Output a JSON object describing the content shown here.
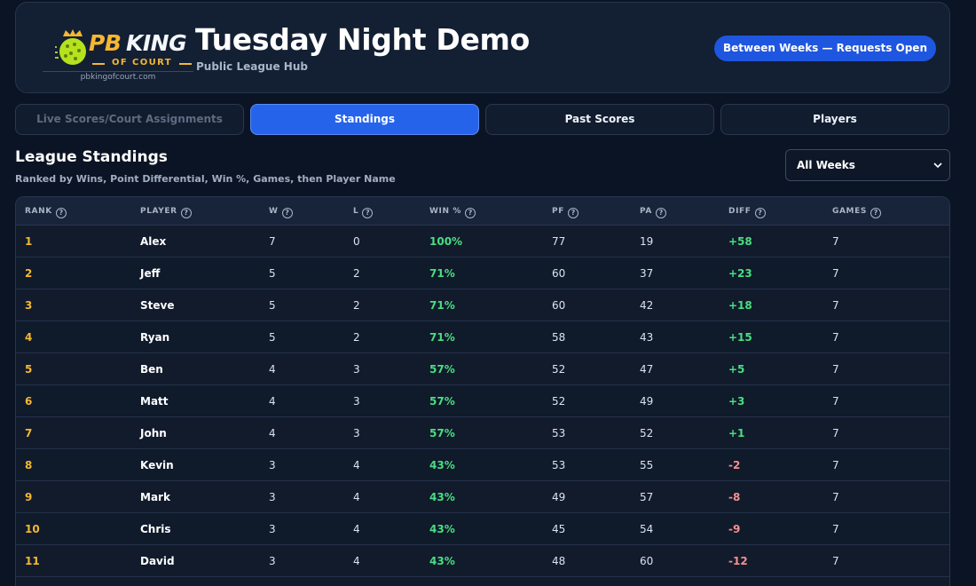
{
  "brand": {
    "logo_pb": "PB",
    "logo_king": "KING",
    "logo_of_court": "OF COURT",
    "logo_url": "pbkingofcourt.com"
  },
  "header": {
    "title": "Tuesday Night Demo",
    "subtitle": "Public League Hub",
    "status": "Between Weeks — Requests Open"
  },
  "tabs": [
    {
      "label": "Live Scores/Court Assignments",
      "state": "disabled"
    },
    {
      "label": "Standings",
      "state": "active"
    },
    {
      "label": "Past Scores",
      "state": "normal"
    },
    {
      "label": "Players",
      "state": "normal"
    }
  ],
  "section": {
    "title": "League Standings",
    "subtitle": "Ranked by Wins, Point Differential, Win %, Games, then Player Name",
    "filter_value": "All Weeks"
  },
  "table": {
    "columns": [
      "RANK",
      "PLAYER",
      "W",
      "L",
      "WIN %",
      "PF",
      "PA",
      "DIFF",
      "GAMES"
    ],
    "rows": [
      {
        "rank": "1",
        "player": "Alex",
        "w": "7",
        "l": "0",
        "win": "100%",
        "pf": "77",
        "pa": "19",
        "diff": "+58",
        "games": "7"
      },
      {
        "rank": "2",
        "player": "Jeff",
        "w": "5",
        "l": "2",
        "win": "71%",
        "pf": "60",
        "pa": "37",
        "diff": "+23",
        "games": "7"
      },
      {
        "rank": "3",
        "player": "Steve",
        "w": "5",
        "l": "2",
        "win": "71%",
        "pf": "60",
        "pa": "42",
        "diff": "+18",
        "games": "7"
      },
      {
        "rank": "4",
        "player": "Ryan",
        "w": "5",
        "l": "2",
        "win": "71%",
        "pf": "58",
        "pa": "43",
        "diff": "+15",
        "games": "7"
      },
      {
        "rank": "5",
        "player": "Ben",
        "w": "4",
        "l": "3",
        "win": "57%",
        "pf": "52",
        "pa": "47",
        "diff": "+5",
        "games": "7"
      },
      {
        "rank": "6",
        "player": "Matt",
        "w": "4",
        "l": "3",
        "win": "57%",
        "pf": "52",
        "pa": "49",
        "diff": "+3",
        "games": "7"
      },
      {
        "rank": "7",
        "player": "John",
        "w": "4",
        "l": "3",
        "win": "57%",
        "pf": "53",
        "pa": "52",
        "diff": "+1",
        "games": "7"
      },
      {
        "rank": "8",
        "player": "Kevin",
        "w": "3",
        "l": "4",
        "win": "43%",
        "pf": "53",
        "pa": "55",
        "diff": "-2",
        "games": "7"
      },
      {
        "rank": "9",
        "player": "Mark",
        "w": "3",
        "l": "4",
        "win": "43%",
        "pf": "49",
        "pa": "57",
        "diff": "-8",
        "games": "7"
      },
      {
        "rank": "10",
        "player": "Chris",
        "w": "3",
        "l": "4",
        "win": "43%",
        "pf": "45",
        "pa": "54",
        "diff": "-9",
        "games": "7"
      },
      {
        "rank": "11",
        "player": "David",
        "w": "3",
        "l": "4",
        "win": "43%",
        "pf": "48",
        "pa": "60",
        "diff": "-12",
        "games": "7"
      }
    ]
  },
  "colors": {
    "accent": "#2563eb",
    "gold": "#f5b731",
    "positive": "#4ade80",
    "negative": "#f59090"
  }
}
